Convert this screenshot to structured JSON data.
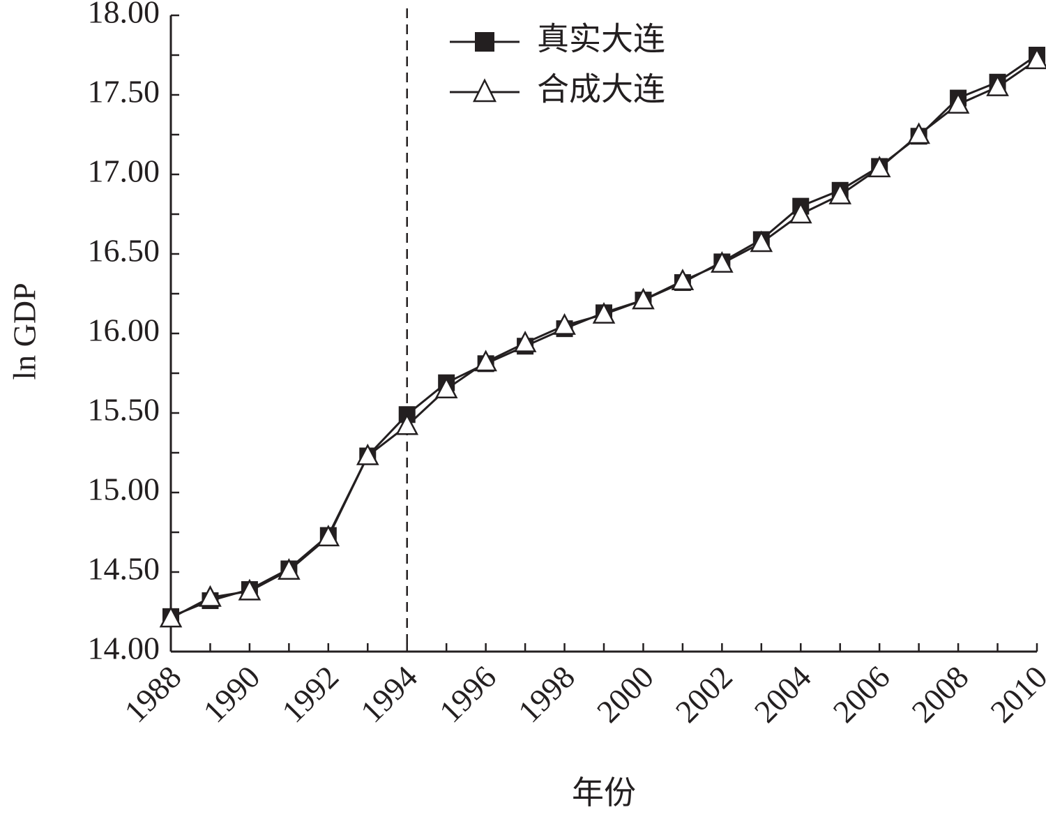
{
  "chart_data": {
    "type": "line",
    "title": "",
    "xlabel": "年份",
    "ylabel": "ln GDP",
    "ylim": [
      14.0,
      18.0
    ],
    "xlim": [
      1988,
      2010
    ],
    "y_ticks": [
      "14.00",
      "14.50",
      "15.00",
      "15.50",
      "16.00",
      "16.50",
      "17.00",
      "17.50",
      "18.00"
    ],
    "x_ticks": [
      "1988",
      "1990",
      "1992",
      "1994",
      "1996",
      "1998",
      "2000",
      "2002",
      "2004",
      "2006",
      "2008",
      "2010"
    ],
    "x": [
      1988,
      1989,
      1990,
      1991,
      1992,
      1993,
      1994,
      1995,
      1996,
      1997,
      1998,
      1999,
      2000,
      2001,
      2002,
      2003,
      2004,
      2005,
      2006,
      2007,
      2008,
      2009,
      2010
    ],
    "series": [
      {
        "name": "真实大连",
        "marker": "filled-square",
        "values": [
          14.22,
          14.32,
          14.39,
          14.52,
          14.73,
          15.23,
          15.49,
          15.69,
          15.81,
          15.92,
          16.03,
          16.13,
          16.21,
          16.32,
          16.45,
          16.59,
          16.8,
          16.9,
          17.05,
          17.24,
          17.48,
          17.58,
          17.75
        ]
      },
      {
        "name": "合成大连",
        "marker": "open-triangle",
        "values": [
          14.21,
          14.34,
          14.38,
          14.51,
          14.72,
          15.23,
          15.42,
          15.65,
          15.82,
          15.94,
          16.05,
          16.12,
          16.21,
          16.33,
          16.44,
          16.57,
          16.75,
          16.87,
          17.04,
          17.25,
          17.44,
          17.55,
          17.72
        ]
      }
    ],
    "annotations": [
      {
        "type": "vertical-dashed-line",
        "x": 1994
      }
    ],
    "legend_position": "top-center",
    "grid": false,
    "colors": {
      "line": "#231f20",
      "background": "#ffffff"
    }
  }
}
